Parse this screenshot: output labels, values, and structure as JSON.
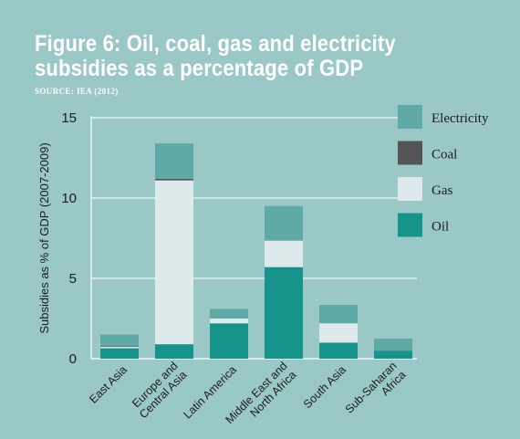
{
  "header": {
    "title": "Figure 6: Oil, coal, gas and electricity subsidies as a percentage of GDP",
    "source": "SOURCE: IEA (2012)"
  },
  "colors": {
    "background": "#9ac8c6",
    "oil": "#16938b",
    "gas": "#dde9ea",
    "coal": "#555558",
    "electricity": "#5fa9a6",
    "gridline": "#ffffff",
    "axis": "#ffffff"
  },
  "chart_data": {
    "type": "bar",
    "stacked": true,
    "title": "Figure 6: Oil, coal, gas and electricity subsidies as a percentage of GDP",
    "xlabel": "",
    "ylabel": "Subsidies as % of GDP (2007-2009)",
    "ylim": [
      0,
      15
    ],
    "yticks": [
      0,
      5,
      10,
      15
    ],
    "grid": true,
    "legend_position": "right",
    "categories": [
      "East Asia",
      "Europe and Central Asia",
      "Latin America",
      "Middle East and North Africa",
      "South Asia",
      "Sub-Saharan Africa"
    ],
    "category_lines": [
      [
        "East Asia"
      ],
      [
        "Europe and",
        "Central Asia"
      ],
      [
        "Latin America"
      ],
      [
        "Middle East and",
        "North Africa"
      ],
      [
        "South Asia"
      ],
      [
        "Sub-Saharan",
        "Africa"
      ]
    ],
    "series": [
      {
        "name": "Oil",
        "color": "#16938b",
        "values": [
          0.65,
          0.9,
          2.2,
          5.7,
          1.0,
          0.5
        ]
      },
      {
        "name": "Gas",
        "color": "#dde9ea",
        "values": [
          0.1,
          10.2,
          0.3,
          1.65,
          1.2,
          0.0
        ]
      },
      {
        "name": "Coal",
        "color": "#555558",
        "values": [
          0.05,
          0.1,
          0.0,
          0.0,
          0.0,
          0.0
        ]
      },
      {
        "name": "Electricity",
        "color": "#5fa9a6",
        "values": [
          0.7,
          2.2,
          0.6,
          2.15,
          1.15,
          0.75
        ]
      }
    ],
    "legend": [
      "Electricity",
      "Coal",
      "Gas",
      "Oil"
    ]
  }
}
